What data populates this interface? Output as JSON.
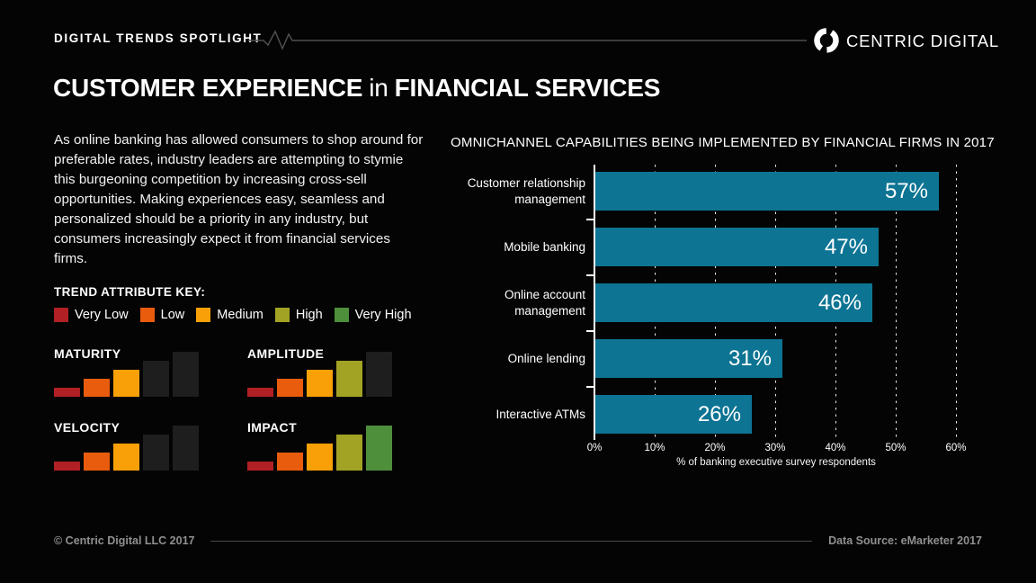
{
  "header": {
    "kicker": "DIGITAL TRENDS SPOTLIGHT",
    "brand": "CENTRIC DIGITAL"
  },
  "title": {
    "emphasis_1": "CUSTOMER EXPERIENCE",
    "connector": "in",
    "emphasis_2": "FINANCIAL SERVICES"
  },
  "intro": "As online banking has allowed consumers to shop around for preferable rates, industry leaders are attempting to stymie this burgeoning competition by increasing cross-sell opportunities. Making experiences easy, seamless and personalized should be a priority in any industry, but consumers increasingly expect it from financial services firms.",
  "trend_key": {
    "title": "TREND ATTRIBUTE KEY:",
    "levels": [
      {
        "label": "Very Low",
        "color": "#b02025"
      },
      {
        "label": "Low",
        "color": "#e95c0e"
      },
      {
        "label": "Medium",
        "color": "#f9a008"
      },
      {
        "label": "High",
        "color": "#a2a324"
      },
      {
        "label": "Very High",
        "color": "#4e8f3c"
      }
    ]
  },
  "trend_attributes": {
    "items": [
      {
        "name": "MATURITY",
        "value": "Medium",
        "level": 3
      },
      {
        "name": "AMPLITUDE",
        "value": "High",
        "level": 4
      },
      {
        "name": "VELOCITY",
        "value": "Medium",
        "level": 3
      },
      {
        "name": "IMPACT",
        "value": "Very High",
        "level": 5
      }
    ]
  },
  "chart_data": {
    "type": "bar",
    "orientation": "horizontal",
    "title": "OMNICHANNEL CAPABILITIES BEING IMPLEMENTED BY FINANCIAL FIRMS IN 2017",
    "categories": [
      "Customer relationship management",
      "Mobile banking",
      "Online account management",
      "Online lending",
      "Interactive ATMs"
    ],
    "values": [
      57,
      47,
      46,
      31,
      26
    ],
    "value_labels": [
      "57%",
      "47%",
      "46%",
      "31%",
      "26%"
    ],
    "xlabel": "% of banking executive survey respondents",
    "xlim": [
      0,
      60
    ],
    "xticks": [
      "0%",
      "10%",
      "20%",
      "30%",
      "40%",
      "50%",
      "60%"
    ],
    "grid": "vertical-dashed",
    "legend": "none",
    "bar_color": "#0d7493"
  },
  "footer": {
    "copyright": "© Centric Digital LLC 2017",
    "source": "Data Source: eMarketer 2017"
  },
  "colors": {
    "background": "#040404",
    "accent_teal": "#0d7493",
    "inactive_bar": "#1e1e1e",
    "muted_text": "#909090",
    "rule_line": "#4f4f4f"
  }
}
